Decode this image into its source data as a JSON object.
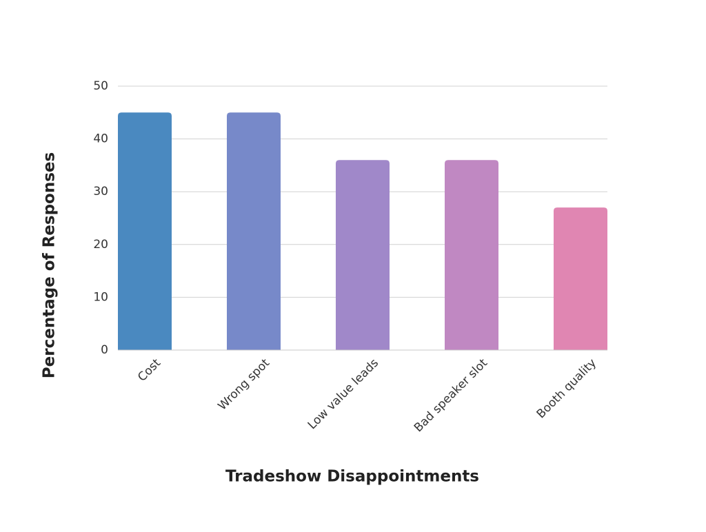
{
  "chart_data": {
    "type": "bar",
    "x_label": "Tradeshow Disappointments",
    "y_label": "Percentage of Responses",
    "categories": [
      "Cost",
      "Wrong spot",
      "Low value leads",
      "Bad speaker slot",
      "Booth quality"
    ],
    "values": [
      45,
      45,
      36,
      36,
      27
    ],
    "colors": [
      "#4a89c0",
      "#7789c9",
      "#a088c9",
      "#c088c2",
      "#e086b2"
    ],
    "ylim": [
      0,
      50
    ],
    "yticks": [
      0,
      10,
      20,
      30,
      40,
      50
    ],
    "grid": true
  }
}
